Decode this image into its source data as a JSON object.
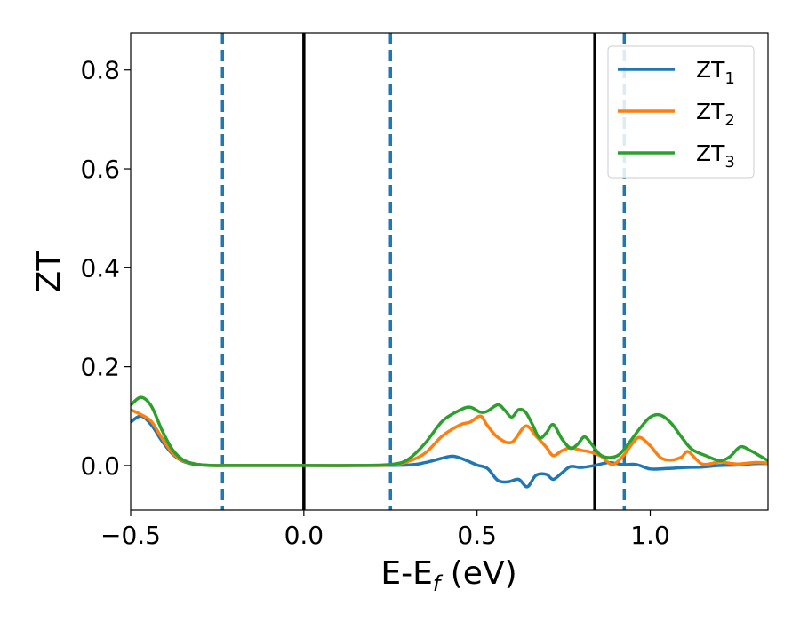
{
  "chart_data": {
    "type": "line",
    "title": "",
    "xlabel": "E-E",
    "xlabel_sub": "f",
    "xlabel_unit": " (eV)",
    "ylabel": "ZT",
    "xlim": [
      -0.5,
      1.34
    ],
    "ylim": [
      -0.09,
      0.875
    ],
    "xticks": [
      -0.5,
      0.0,
      0.5,
      1.0
    ],
    "xtick_labels": [
      "−0.5",
      "0.0",
      "0.5",
      "1.0"
    ],
    "yticks": [
      0.0,
      0.2,
      0.4,
      0.6,
      0.8
    ],
    "ytick_labels": [
      "0.0",
      "0.2",
      "0.4",
      "0.6",
      "0.8"
    ],
    "grid": false,
    "legend_position": "top-right",
    "series": [
      {
        "name": "ZT",
        "name_sub": "1",
        "color": "#1f77b4",
        "x": [
          -0.5,
          -0.47,
          -0.44,
          -0.41,
          -0.38,
          -0.35,
          -0.32,
          -0.29,
          -0.26,
          -0.23,
          -0.1,
          0.0,
          0.15,
          0.3,
          0.35,
          0.4,
          0.43,
          0.46,
          0.5,
          0.53,
          0.56,
          0.59,
          0.62,
          0.645,
          0.67,
          0.7,
          0.72,
          0.745,
          0.77,
          0.8,
          0.84,
          0.88,
          0.92,
          0.96,
          1.0,
          1.05,
          1.1,
          1.15,
          1.2,
          1.25,
          1.3,
          1.34
        ],
        "y": [
          0.088,
          0.1,
          0.082,
          0.05,
          0.024,
          0.009,
          0.003,
          0.001,
          0.0,
          0.0,
          0.0,
          0.0,
          0.0,
          0.001,
          0.006,
          0.015,
          0.019,
          0.013,
          0.001,
          -0.006,
          -0.03,
          -0.033,
          -0.028,
          -0.043,
          -0.02,
          -0.018,
          -0.028,
          -0.015,
          -0.002,
          -0.004,
          0.0,
          0.006,
          0.002,
          0.002,
          -0.007,
          -0.006,
          -0.004,
          -0.003,
          0.0,
          0.001,
          0.004,
          0.004
        ]
      },
      {
        "name": "ZT",
        "name_sub": "2",
        "color": "#ff7f0e",
        "x": [
          -0.5,
          -0.47,
          -0.44,
          -0.41,
          -0.38,
          -0.35,
          -0.32,
          -0.29,
          -0.26,
          -0.23,
          -0.1,
          0.0,
          0.15,
          0.25,
          0.3,
          0.35,
          0.4,
          0.45,
          0.48,
          0.51,
          0.53,
          0.56,
          0.6,
          0.64,
          0.67,
          0.7,
          0.72,
          0.745,
          0.77,
          0.8,
          0.83,
          0.86,
          0.89,
          0.92,
          0.95,
          0.97,
          1.0,
          1.03,
          1.06,
          1.09,
          1.11,
          1.15,
          1.2,
          1.25,
          1.3,
          1.34
        ],
        "y": [
          0.113,
          0.103,
          0.089,
          0.056,
          0.026,
          0.01,
          0.004,
          0.001,
          0.0,
          0.0,
          0.0,
          0.0,
          0.0,
          0.001,
          0.008,
          0.025,
          0.06,
          0.082,
          0.088,
          0.1,
          0.081,
          0.057,
          0.047,
          0.08,
          0.06,
          0.037,
          0.02,
          0.03,
          0.036,
          0.031,
          0.027,
          0.018,
          0.002,
          0.018,
          0.046,
          0.057,
          0.04,
          0.016,
          0.011,
          0.017,
          0.028,
          0.003,
          0.007,
          0.003,
          0.006,
          0.005
        ]
      },
      {
        "name": "ZT",
        "name_sub": "3",
        "color": "#2ca02c",
        "x": [
          -0.5,
          -0.47,
          -0.44,
          -0.41,
          -0.38,
          -0.35,
          -0.32,
          -0.29,
          -0.26,
          -0.23,
          -0.1,
          0.0,
          0.15,
          0.25,
          0.3,
          0.35,
          0.4,
          0.45,
          0.48,
          0.51,
          0.53,
          0.56,
          0.58,
          0.6,
          0.62,
          0.64,
          0.66,
          0.68,
          0.7,
          0.72,
          0.745,
          0.77,
          0.79,
          0.81,
          0.83,
          0.855,
          0.88,
          0.91,
          0.94,
          0.97,
          1.0,
          1.03,
          1.06,
          1.09,
          1.12,
          1.16,
          1.2,
          1.23,
          1.26,
          1.29,
          1.32,
          1.34
        ],
        "y": [
          0.122,
          0.138,
          0.12,
          0.072,
          0.033,
          0.012,
          0.004,
          0.001,
          0.0,
          0.0,
          0.0,
          0.0,
          0.0,
          0.002,
          0.012,
          0.045,
          0.09,
          0.112,
          0.118,
          0.108,
          0.11,
          0.123,
          0.112,
          0.098,
          0.113,
          0.108,
          0.083,
          0.056,
          0.066,
          0.083,
          0.054,
          0.035,
          0.043,
          0.058,
          0.044,
          0.022,
          0.016,
          0.022,
          0.047,
          0.075,
          0.098,
          0.102,
          0.086,
          0.058,
          0.033,
          0.02,
          0.01,
          0.018,
          0.038,
          0.03,
          0.018,
          0.01
        ]
      }
    ],
    "vlines": [
      {
        "x": -0.235,
        "style": "dashed",
        "color": "#1f77b4"
      },
      {
        "x": 0.0,
        "style": "solid",
        "color": "#000000"
      },
      {
        "x": 0.25,
        "style": "dashed",
        "color": "#1f77b4"
      },
      {
        "x": 0.84,
        "style": "solid",
        "color": "#000000"
      },
      {
        "x": 0.925,
        "style": "dashed",
        "color": "#1f77b4"
      }
    ]
  }
}
